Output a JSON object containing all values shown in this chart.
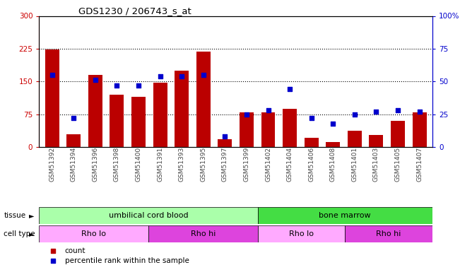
{
  "title": "GDS1230 / 206743_s_at",
  "samples": [
    "GSM51392",
    "GSM51394",
    "GSM51396",
    "GSM51398",
    "GSM51400",
    "GSM51391",
    "GSM51393",
    "GSM51395",
    "GSM51397",
    "GSM51399",
    "GSM51402",
    "GSM51404",
    "GSM51406",
    "GSM51408",
    "GSM51401",
    "GSM51403",
    "GSM51405",
    "GSM51407"
  ],
  "counts": [
    224,
    30,
    165,
    120,
    115,
    148,
    175,
    218,
    18,
    80,
    80,
    88,
    22,
    12,
    38,
    28,
    60,
    80
  ],
  "percentiles": [
    55,
    22,
    51,
    47,
    47,
    54,
    54,
    55,
    8,
    25,
    28,
    44,
    22,
    18,
    25,
    27,
    28,
    27
  ],
  "ylim_left": [
    0,
    300
  ],
  "ylim_right": [
    0,
    100
  ],
  "yticks_left": [
    0,
    75,
    150,
    225,
    300
  ],
  "yticks_right": [
    0,
    25,
    50,
    75,
    100
  ],
  "bar_color": "#BB0000",
  "dot_color": "#0000CC",
  "tissue_groups": [
    {
      "label": "umbilical cord blood",
      "start": 0,
      "end": 10,
      "color": "#AAFFAA"
    },
    {
      "label": "bone marrow",
      "start": 10,
      "end": 18,
      "color": "#44DD44"
    }
  ],
  "cell_type_groups": [
    {
      "label": "Rho lo",
      "start": 0,
      "end": 5,
      "color": "#FFAAFF"
    },
    {
      "label": "Rho hi",
      "start": 5,
      "end": 10,
      "color": "#DD44DD"
    },
    {
      "label": "Rho lo",
      "start": 10,
      "end": 14,
      "color": "#FFAAFF"
    },
    {
      "label": "Rho hi",
      "start": 14,
      "end": 18,
      "color": "#DD44DD"
    }
  ],
  "background_color": "#FFFFFF",
  "left_axis_color": "#CC0000",
  "right_axis_color": "#0000CC",
  "xlabel_color": "#444444"
}
